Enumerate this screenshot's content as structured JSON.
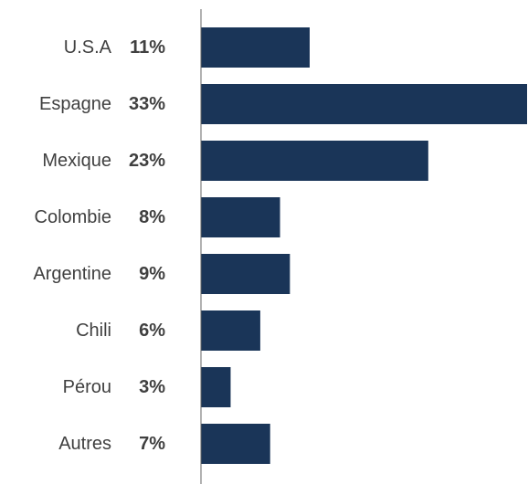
{
  "chart_data": {
    "type": "bar",
    "orientation": "horizontal",
    "categories": [
      "U.S.A",
      "Espagne",
      "Mexique",
      "Colombie",
      "Argentine",
      "Chili",
      "Pérou",
      "Autres"
    ],
    "values": [
      11,
      33,
      23,
      8,
      9,
      6,
      3,
      7
    ],
    "value_labels": [
      "11%",
      "33%",
      "23%",
      "8%",
      "9%",
      "6%",
      "3%",
      "7%"
    ],
    "unit": "%",
    "title": "",
    "xlabel": "",
    "ylabel": "",
    "xlim": [
      0,
      33
    ],
    "grid": false,
    "legend": "none",
    "bar_color": "#1a3558",
    "axis_color": "#666666",
    "text_color": "#404040"
  }
}
